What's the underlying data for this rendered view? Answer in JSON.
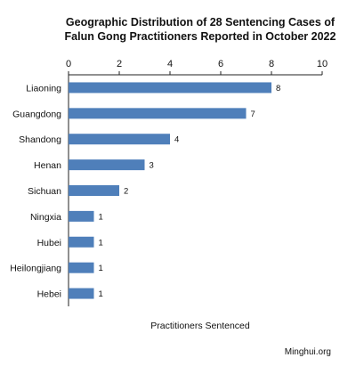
{
  "chart_data": {
    "type": "bar",
    "orientation": "horizontal",
    "title": "Geographic Distribution of 28 Sentencing Cases of Falun Gong Practitioners Reported in October 2022",
    "xlabel": "Practitioners Sentenced",
    "categories": [
      "Liaoning",
      "Guangdong",
      "Shandong",
      "Henan",
      "Sichuan",
      "Ningxia",
      "Hubei",
      "Heilongjiang",
      "Hebei"
    ],
    "values": [
      8,
      7,
      4,
      3,
      2,
      1,
      1,
      1,
      1
    ],
    "xlim": [
      0,
      10
    ],
    "xticks": [
      0,
      2,
      4,
      6,
      8,
      10
    ],
    "axis_position": "top",
    "grid": false,
    "data_labels": true,
    "bar_color": "#4f7fba"
  },
  "source": "Minghui.org"
}
